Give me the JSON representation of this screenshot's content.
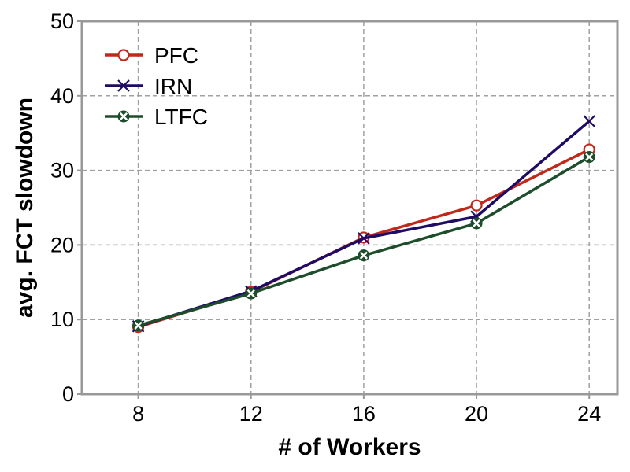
{
  "chart_data": {
    "type": "line",
    "title": "",
    "xlabel": "# of Workers",
    "ylabel": "avg. FCT slowdown",
    "categories": [
      "8",
      "12",
      "16",
      "20",
      "24"
    ],
    "x": [
      8,
      12,
      16,
      20,
      24
    ],
    "xlim": [
      6,
      25
    ],
    "ylim": [
      0,
      50
    ],
    "yticks": [
      0,
      10,
      20,
      30,
      40,
      50
    ],
    "grid": true,
    "legend_position": "top-left",
    "series": [
      {
        "name": "PFC",
        "values": [
          9.0,
          13.7,
          21.0,
          25.3,
          32.8
        ],
        "color": "#c0281b",
        "marker": "circle"
      },
      {
        "name": "IRN",
        "values": [
          9.1,
          13.8,
          20.9,
          23.8,
          36.6
        ],
        "color": "#1f0b63",
        "marker": "x"
      },
      {
        "name": "LTFC",
        "values": [
          9.2,
          13.5,
          18.6,
          22.9,
          31.8
        ],
        "color": "#1e4d2b",
        "marker": "x-circle"
      }
    ]
  }
}
